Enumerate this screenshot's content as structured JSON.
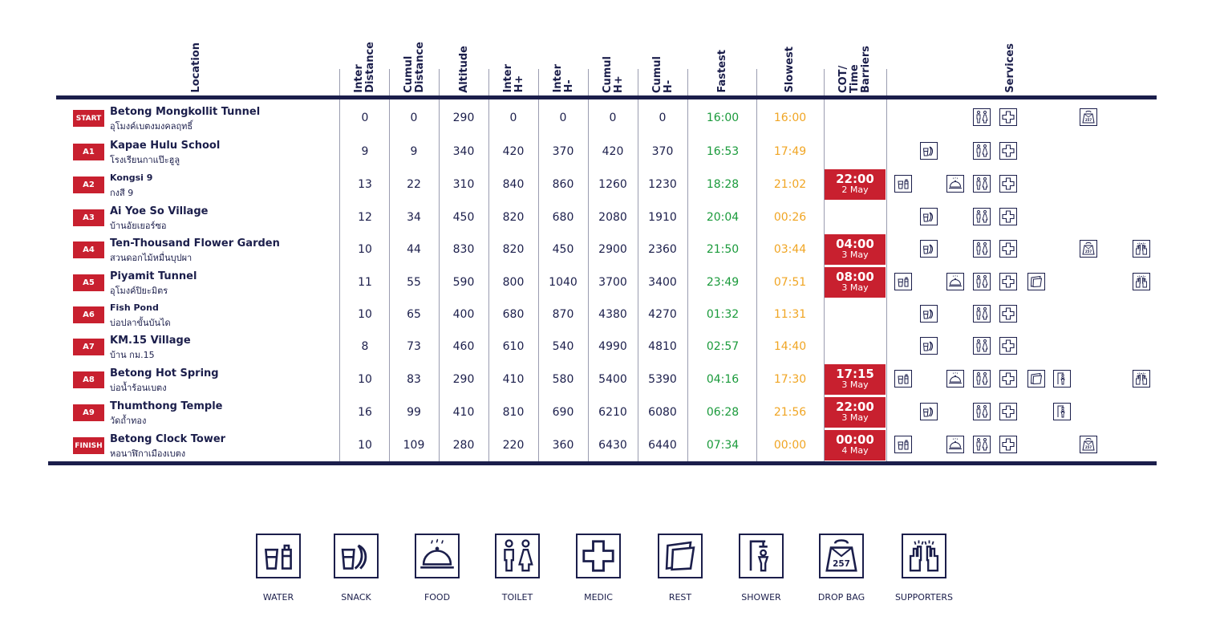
{
  "columns": {
    "location": "Location",
    "inter_distance": "Inter\nDistance",
    "cumul_distance": "Cumul\nDistance",
    "altitude": "Altitude",
    "inter_hplus": "Inter\nH+",
    "inter_hminus": "Inter\nH-",
    "cumul_hplus": "Cumul\nH+",
    "cumul_hminus": "Cumul\nH-",
    "fastest": "Fastest",
    "slowest": "Slowest",
    "cot": "COT/\nTime\nBarriers",
    "services": "Services"
  },
  "rows": [
    {
      "badge": "START",
      "name": "Betong Mongkollit Tunnel",
      "thai": "อุโมงค์เบตงมงคลฤทธิ์",
      "inter_distance": "0",
      "cumul_distance": "0",
      "altitude": "290",
      "inter_hplus": "0",
      "inter_hminus": "0",
      "cumul_hplus": "0",
      "cumul_hminus": "0",
      "fastest": "16:00",
      "slowest": "16:00",
      "cot_time": "",
      "cot_date": "",
      "services": [
        "toilet",
        "medic",
        "dropbag"
      ]
    },
    {
      "badge": "A1",
      "name": "Kapae Hulu School",
      "thai": "โรงเรียนกาแป๊ะฮูลู",
      "inter_distance": "9",
      "cumul_distance": "9",
      "altitude": "340",
      "inter_hplus": "420",
      "inter_hminus": "370",
      "cumul_hplus": "420",
      "cumul_hminus": "370",
      "fastest": "16:53",
      "slowest": "17:49",
      "cot_time": "",
      "cot_date": "",
      "services": [
        "snack",
        "toilet",
        "medic"
      ]
    },
    {
      "badge": "A2",
      "name": "Kongsi 9",
      "thai": "กงสี 9",
      "inter_distance": "13",
      "cumul_distance": "22",
      "altitude": "310",
      "inter_hplus": "840",
      "inter_hminus": "860",
      "cumul_hplus": "1260",
      "cumul_hminus": "1230",
      "fastest": "18:28",
      "slowest": "21:02",
      "cot_time": "22:00",
      "cot_date": "2 May",
      "services": [
        "water",
        "food",
        "toilet",
        "medic"
      ]
    },
    {
      "badge": "A3",
      "name": "Ai Yoe So Village",
      "thai": "บ้านอัยเยอร์ซอ",
      "inter_distance": "12",
      "cumul_distance": "34",
      "altitude": "450",
      "inter_hplus": "820",
      "inter_hminus": "680",
      "cumul_hplus": "2080",
      "cumul_hminus": "1910",
      "fastest": "20:04",
      "slowest": "00:26",
      "cot_time": "",
      "cot_date": "",
      "services": [
        "snack",
        "toilet",
        "medic"
      ]
    },
    {
      "badge": "A4",
      "name": "Ten-Thousand Flower Garden",
      "thai": "สวนดอกไม้หมื่นบุปผา",
      "inter_distance": "10",
      "cumul_distance": "44",
      "altitude": "830",
      "inter_hplus": "820",
      "inter_hminus": "450",
      "cumul_hplus": "2900",
      "cumul_hminus": "2360",
      "fastest": "21:50",
      "slowest": "03:44",
      "cot_time": "04:00",
      "cot_date": "3 May",
      "services": [
        "snack",
        "toilet",
        "medic",
        "dropbag",
        "supporters"
      ]
    },
    {
      "badge": "A5",
      "name": "Piyamit Tunnel",
      "thai": "อุโมงค์ปิยะมิตร",
      "inter_distance": "11",
      "cumul_distance": "55",
      "altitude": "590",
      "inter_hplus": "800",
      "inter_hminus": "1040",
      "cumul_hplus": "3700",
      "cumul_hminus": "3400",
      "fastest": "23:49",
      "slowest": "07:51",
      "cot_time": "08:00",
      "cot_date": "3 May",
      "services": [
        "water",
        "food",
        "toilet",
        "medic",
        "rest",
        "supporters"
      ]
    },
    {
      "badge": "A6",
      "name": "Fish Pond",
      "thai": "บ่อปลาขั้นบันได",
      "inter_distance": "10",
      "cumul_distance": "65",
      "altitude": "400",
      "inter_hplus": "680",
      "inter_hminus": "870",
      "cumul_hplus": "4380",
      "cumul_hminus": "4270",
      "fastest": "01:32",
      "slowest": "11:31",
      "cot_time": "",
      "cot_date": "",
      "services": [
        "snack",
        "toilet",
        "medic"
      ]
    },
    {
      "badge": "A7",
      "name": "KM.15 Village",
      "thai": "บ้าน กม.15",
      "inter_distance": "8",
      "cumul_distance": "73",
      "altitude": "460",
      "inter_hplus": "610",
      "inter_hminus": "540",
      "cumul_hplus": "4990",
      "cumul_hminus": "4810",
      "fastest": "02:57",
      "slowest": "14:40",
      "cot_time": "",
      "cot_date": "",
      "services": [
        "snack",
        "toilet",
        "medic"
      ]
    },
    {
      "badge": "A8",
      "name": "Betong Hot Spring",
      "thai": "บ่อน้ำร้อนเบตง",
      "inter_distance": "10",
      "cumul_distance": "83",
      "altitude": "290",
      "inter_hplus": "410",
      "inter_hminus": "580",
      "cumul_hplus": "5400",
      "cumul_hminus": "5390",
      "fastest": "04:16",
      "slowest": "17:30",
      "cot_time": "17:15",
      "cot_date": "3 May",
      "services": [
        "water",
        "food",
        "toilet",
        "medic",
        "rest",
        "shower",
        "supporters"
      ]
    },
    {
      "badge": "A9",
      "name": "Thumthong Temple",
      "thai": "วัดถ้ำทอง",
      "inter_distance": "16",
      "cumul_distance": "99",
      "altitude": "410",
      "inter_hplus": "810",
      "inter_hminus": "690",
      "cumul_hplus": "6210",
      "cumul_hminus": "6080",
      "fastest": "06:28",
      "slowest": "21:56",
      "cot_time": "22:00",
      "cot_date": "3 May",
      "services": [
        "snack",
        "toilet",
        "medic",
        "shower"
      ]
    },
    {
      "badge": "FINISH",
      "name": "Betong Clock Tower",
      "thai": "หอนาฬิกาเมืองเบตง",
      "inter_distance": "10",
      "cumul_distance": "109",
      "altitude": "280",
      "inter_hplus": "220",
      "inter_hminus": "360",
      "cumul_hplus": "6430",
      "cumul_hminus": "6440",
      "fastest": "07:34",
      "slowest": "00:00",
      "cot_time": "00:00",
      "cot_date": "4 May",
      "services": [
        "water",
        "food",
        "toilet",
        "medic",
        "dropbag"
      ]
    }
  ],
  "legend": [
    {
      "icon": "water",
      "label": "WATER"
    },
    {
      "icon": "snack",
      "label": "SNACK"
    },
    {
      "icon": "food",
      "label": "FOOD"
    },
    {
      "icon": "toilet",
      "label": "TOILET"
    },
    {
      "icon": "medic",
      "label": "MEDIC"
    },
    {
      "icon": "rest",
      "label": "REST"
    },
    {
      "icon": "shower",
      "label": "SHOWER"
    },
    {
      "icon": "dropbag",
      "label": "DROP BAG"
    },
    {
      "icon": "supporters",
      "label": "SUPPORTERS"
    }
  ],
  "colors": {
    "navy": "#1b1e4b",
    "red": "#c8202f",
    "green": "#1a9a3b",
    "orange": "#f0a523"
  }
}
